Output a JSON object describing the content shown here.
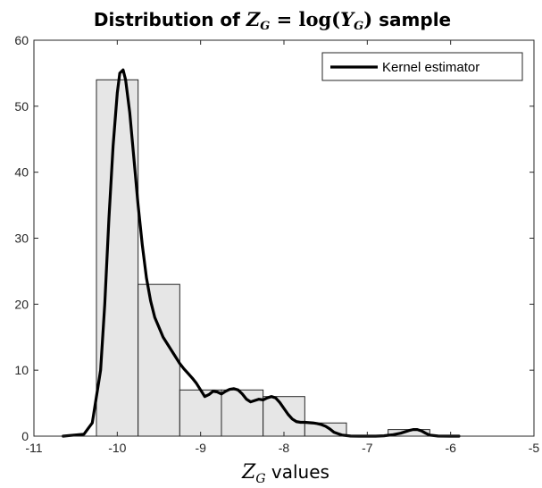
{
  "chart_data": {
    "type": "bar",
    "title": {
      "prefix": "Distribution of ",
      "lhs_var": "Z",
      "lhs_sub": "G",
      "eq": " = ",
      "func": "log(",
      "arg_var": "Y",
      "arg_sub": "G",
      "close": ")",
      "suffix": " sample"
    },
    "xlabel": {
      "var": "Z",
      "sub": "G",
      "text": " values"
    },
    "ylabel": "",
    "xlim": [
      -11,
      -5
    ],
    "ylim": [
      0,
      60
    ],
    "xticks": [
      -11,
      -10,
      -9,
      -8,
      -7,
      -6,
      -5
    ],
    "yticks": [
      0,
      10,
      20,
      30,
      40,
      50,
      60
    ],
    "grid": false,
    "legend_position": "top-right",
    "bar_color": "#e6e6e6",
    "bar_edge_color": "#262626",
    "line_color": "#000000",
    "histogram": {
      "bin_edges": [
        -10.25,
        -9.75,
        -9.25,
        -8.75,
        -8.25,
        -7.75,
        -7.25,
        -6.75,
        -6.25
      ],
      "counts": [
        54,
        23,
        7,
        7,
        6,
        2,
        0,
        1
      ]
    },
    "series": [
      {
        "name": "Kernel estimator",
        "type": "line",
        "x": [
          -10.65,
          -10.4,
          -10.3,
          -10.2,
          -10.15,
          -10.1,
          -10.05,
          -10.0,
          -9.97,
          -9.93,
          -9.9,
          -9.85,
          -9.8,
          -9.75,
          -9.7,
          -9.65,
          -9.6,
          -9.55,
          -9.5,
          -9.45,
          -9.4,
          -9.35,
          -9.3,
          -9.25,
          -9.2,
          -9.15,
          -9.1,
          -9.05,
          -9.0,
          -8.95,
          -8.9,
          -8.85,
          -8.8,
          -8.75,
          -8.7,
          -8.65,
          -8.6,
          -8.55,
          -8.5,
          -8.45,
          -8.4,
          -8.35,
          -8.3,
          -8.25,
          -8.2,
          -8.15,
          -8.1,
          -8.05,
          -8.0,
          -7.95,
          -7.9,
          -7.85,
          -7.8,
          -7.75,
          -7.7,
          -7.65,
          -7.6,
          -7.55,
          -7.5,
          -7.45,
          -7.4,
          -7.3,
          -7.2,
          -7.1,
          -7.0,
          -6.9,
          -6.8,
          -6.7,
          -6.6,
          -6.5,
          -6.45,
          -6.4,
          -6.35,
          -6.3,
          -6.25,
          -6.15,
          -6.0,
          -5.9
        ],
        "y": [
          0,
          0.3,
          2,
          10,
          20,
          33,
          44,
          52,
          55,
          55.5,
          54,
          49,
          42,
          35,
          29,
          24,
          20.5,
          18,
          16.5,
          15,
          14,
          13,
          12,
          11,
          10.2,
          9.5,
          8.8,
          8,
          7,
          6,
          6.3,
          6.8,
          6.7,
          6.4,
          6.8,
          7.1,
          7.2,
          7.0,
          6.4,
          5.6,
          5.2,
          5.4,
          5.6,
          5.5,
          5.8,
          6.0,
          5.8,
          5.1,
          4.2,
          3.3,
          2.6,
          2.2,
          2.1,
          2.1,
          2.05,
          2.0,
          1.9,
          1.75,
          1.5,
          1.1,
          0.6,
          0.15,
          0.02,
          0,
          0,
          0,
          0.05,
          0.2,
          0.45,
          0.85,
          1.0,
          1.0,
          0.8,
          0.45,
          0.15,
          0.02,
          0,
          0
        ]
      }
    ]
  }
}
